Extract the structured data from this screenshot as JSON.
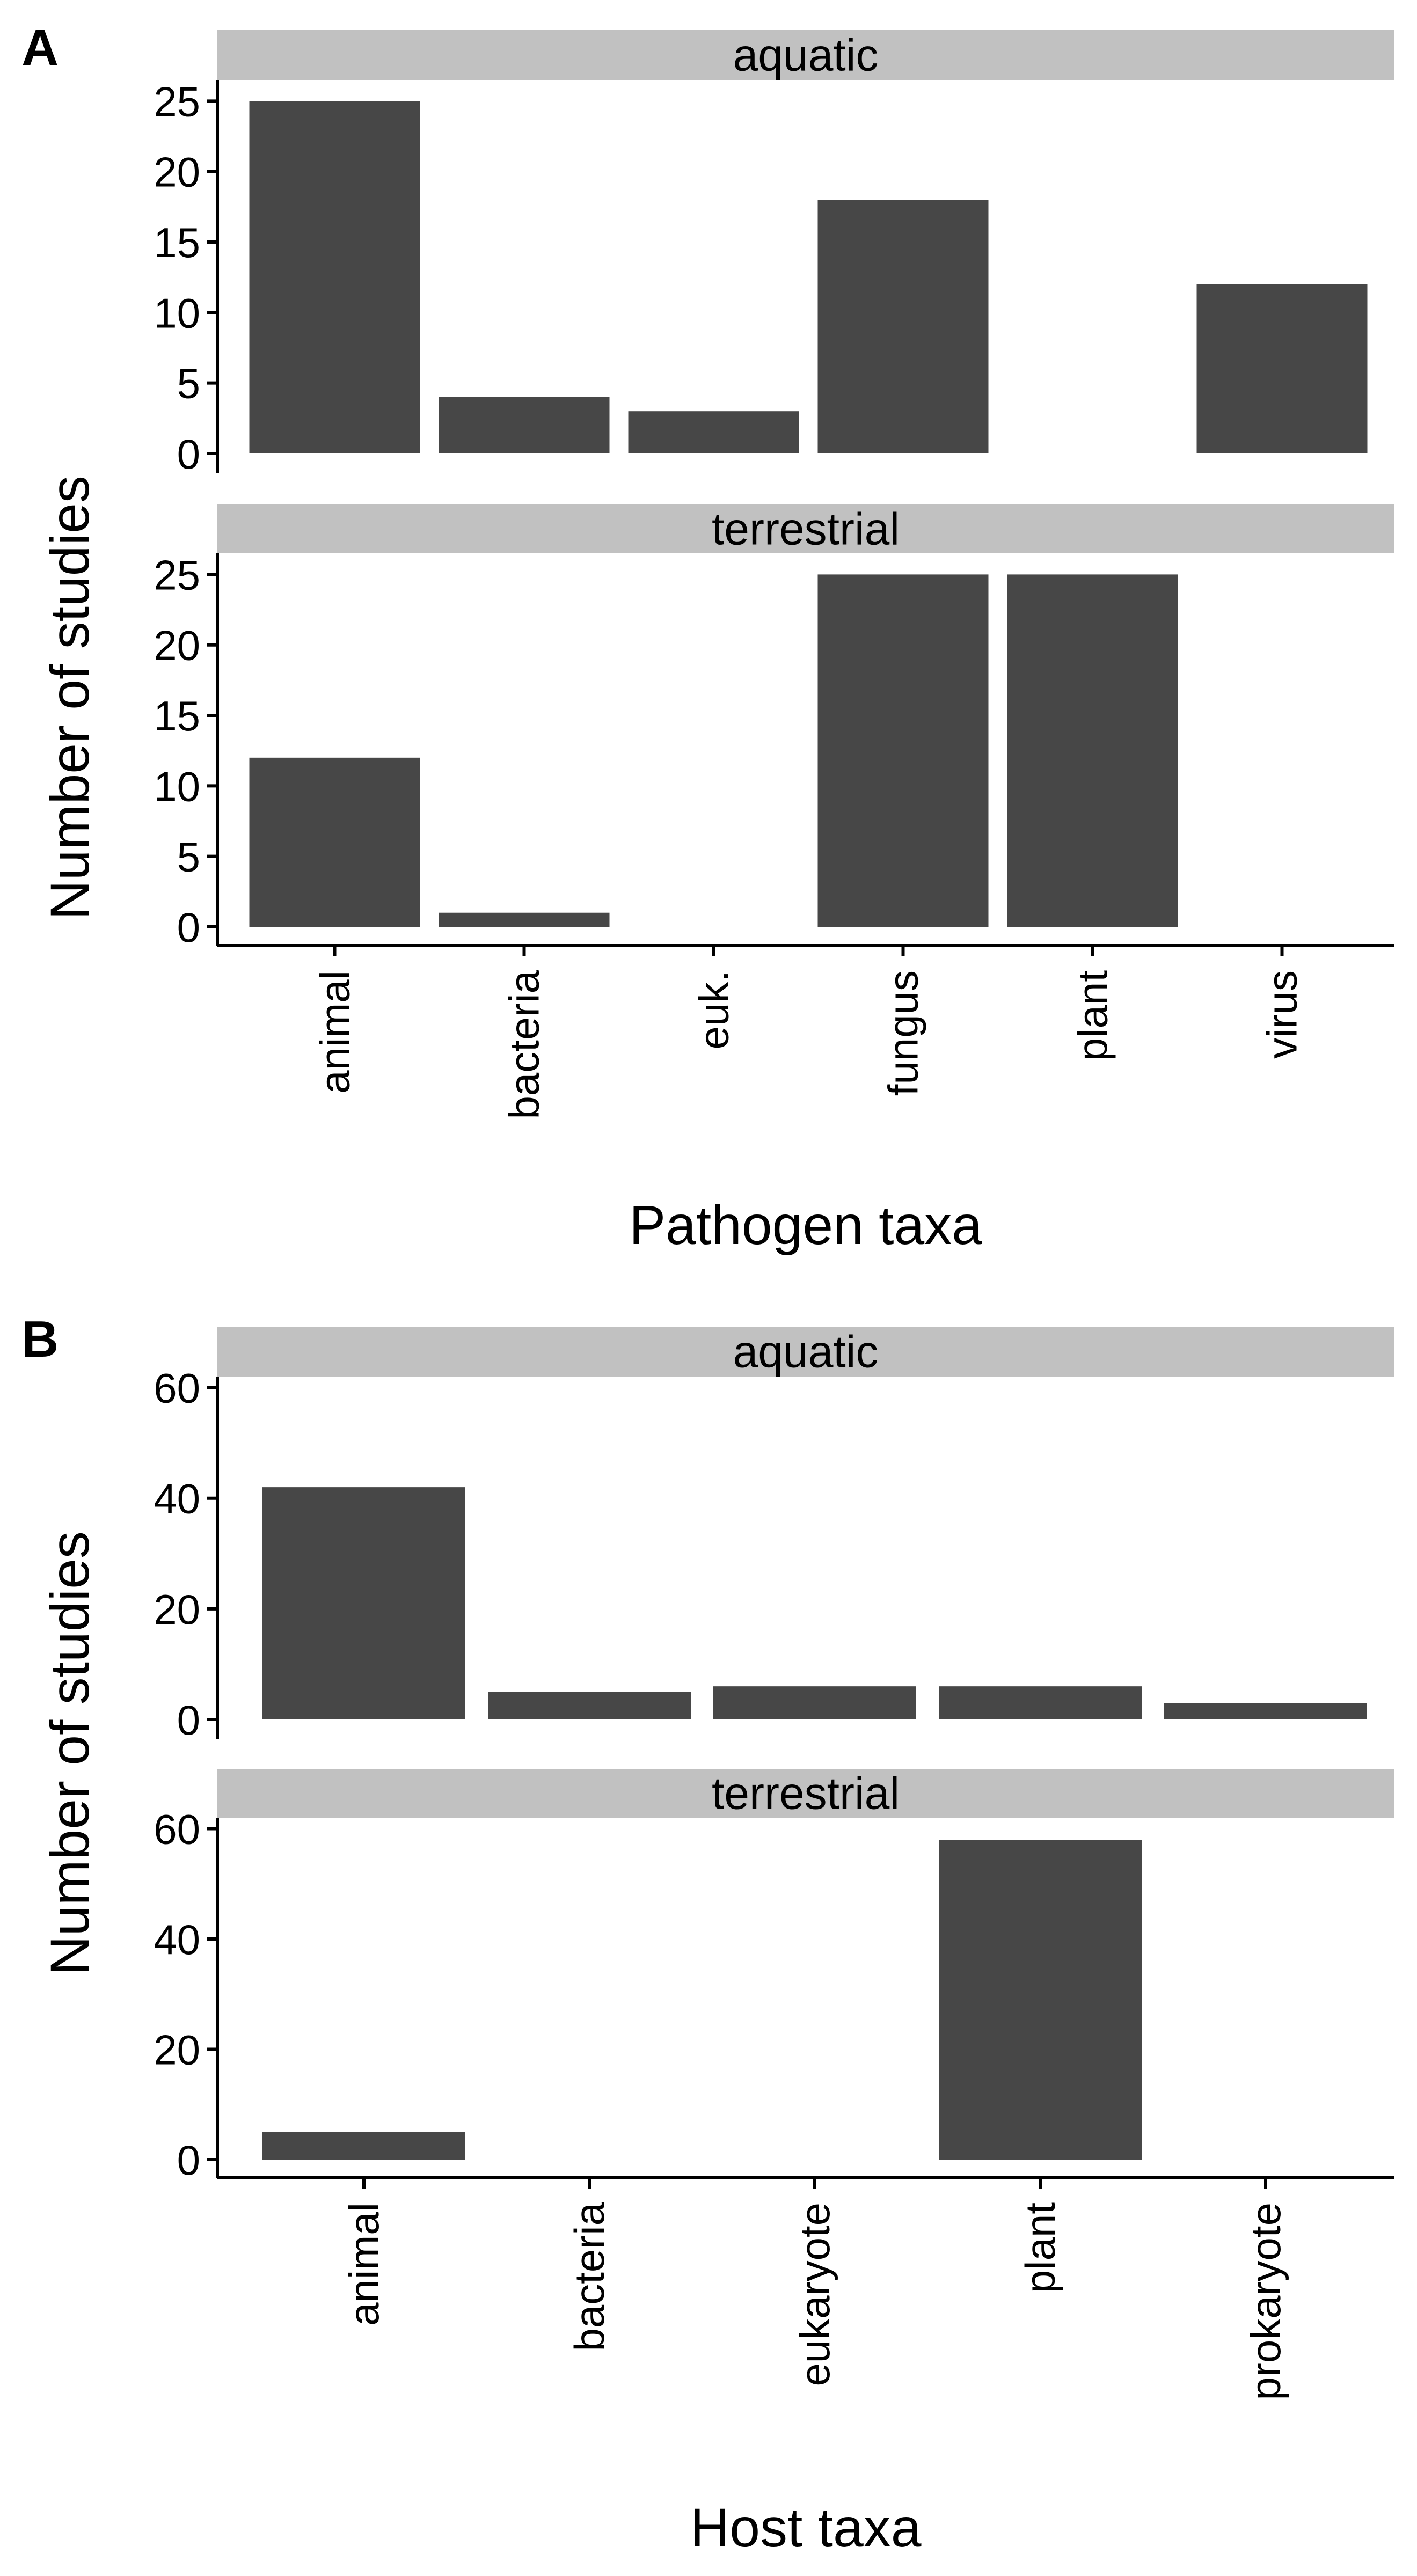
{
  "colors": {
    "bar": "#474747",
    "strip": "#c1c1c1",
    "axis": "#000000",
    "background": "#ffffff"
  },
  "chart_data": [
    {
      "type": "bar",
      "panel_label": "A",
      "xlabel": "Pathogen taxa",
      "ylabel": "Number of studies",
      "categories": [
        "animal",
        "bacteria",
        "euk.",
        "fungus",
        "plant",
        "virus"
      ],
      "ylim": [
        0,
        26.5
      ],
      "yticks": [
        0,
        5,
        10,
        15,
        20,
        25
      ],
      "facets": [
        {
          "name": "aquatic",
          "values": [
            25,
            4,
            3,
            18,
            0,
            12
          ]
        },
        {
          "name": "terrestrial",
          "values": [
            12,
            1,
            0,
            25,
            25,
            0
          ]
        }
      ],
      "grid": false
    },
    {
      "type": "bar",
      "panel_label": "B",
      "xlabel": "Host taxa",
      "ylabel": "Number of studies",
      "categories": [
        "animal",
        "bacteria",
        "eukaryote",
        "plant",
        "prokaryote"
      ],
      "ylim": [
        0,
        62
      ],
      "yticks": [
        0,
        20,
        40,
        60
      ],
      "facets": [
        {
          "name": "aquatic",
          "values": [
            42,
            5,
            6,
            6,
            3
          ]
        },
        {
          "name": "terrestrial",
          "values": [
            5,
            0,
            0,
            58,
            0
          ]
        }
      ],
      "grid": false
    }
  ]
}
